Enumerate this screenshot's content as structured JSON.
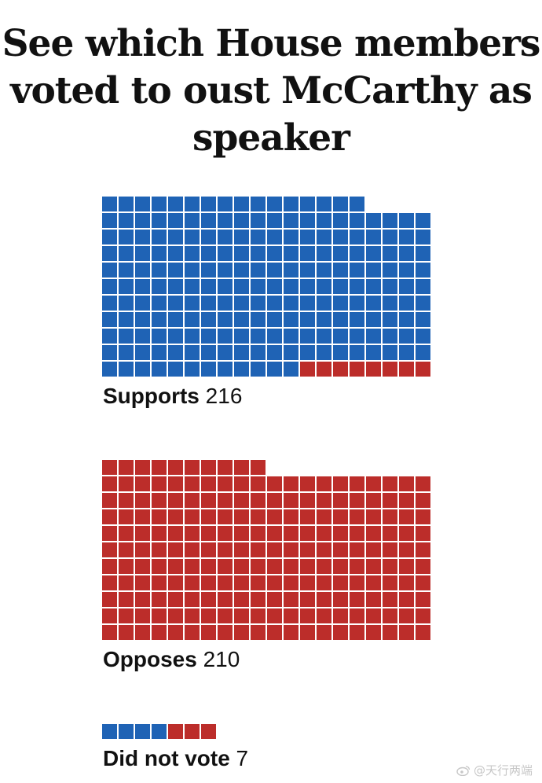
{
  "title": "See which House members voted to oust McCarthy as speaker",
  "colors": {
    "democrat": "#1f63b5",
    "republican": "#bc2d2a"
  },
  "watermark": "@天行两端",
  "chart_data": [
    {
      "type": "waffle",
      "category": "Supports",
      "total": 216,
      "label_category": "Supports",
      "label_value": "216",
      "composition": [
        {
          "party": "democrat",
          "count": 208,
          "color": "#1f63b5"
        },
        {
          "party": "republican",
          "count": 8,
          "color": "#bc2d2a"
        }
      ]
    },
    {
      "type": "waffle",
      "category": "Opposes",
      "total": 210,
      "label_category": "Opposes",
      "label_value": "210",
      "composition": [
        {
          "party": "republican",
          "count": 210,
          "color": "#bc2d2a"
        }
      ]
    },
    {
      "type": "waffle",
      "category": "Did not vote",
      "total": 7,
      "label_category": "Did not vote",
      "label_value": "7",
      "composition": [
        {
          "party": "democrat",
          "count": 4,
          "color": "#1f63b5"
        },
        {
          "party": "republican",
          "count": 3,
          "color": "#bc2d2a"
        }
      ]
    }
  ]
}
